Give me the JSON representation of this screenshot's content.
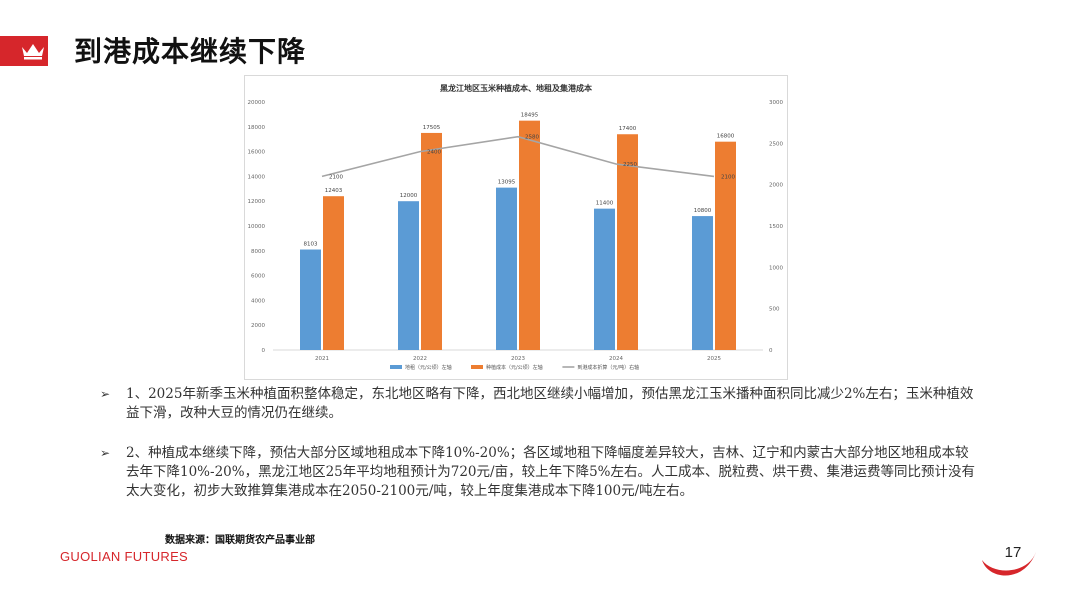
{
  "slide": {
    "title": "到港成本继续下降",
    "source": "数据来源：国联期货农产品事业部",
    "brand": "GUOLIAN FUTURES",
    "page_number": "17",
    "accent_color": "#d6262b"
  },
  "bullets": [
    {
      "marker": "➢",
      "text": "1、2025年新季玉米种植面积整体稳定，东北地区略有下降，西北地区继续小幅增加，预估黑龙江玉米播种面积同比减少2%左右；玉米种植效益下滑，改种大豆的情况仍在继续。"
    },
    {
      "marker": "➢",
      "text": "2、种植成本继续下降，预估大部分区域地租成本下降10%-20%；各区域地租下降幅度差异较大，吉林、辽宁和内蒙古大部分地区地租成本较去年下降10%-20%，黑龙江地区25年平均地租预计为720元/亩，较上年下降5%左右。人工成本、脱粒费、烘干费、集港运费等同比预计没有太大变化，初步大致推算集港成本在2050-2100元/吨，较上年度集港成本下降100元/吨左右。"
    }
  ],
  "chart_data": {
    "type": "bar",
    "title": "黑龙江地区玉米种植成本、地租及集港成本",
    "categories": [
      "2021",
      "2022",
      "2023",
      "2024",
      "2025"
    ],
    "left_axis": {
      "min": 0,
      "max": 20000,
      "step": 2000,
      "ticks": [
        "0",
        "2000",
        "4000",
        "6000",
        "8000",
        "10000",
        "12000",
        "14000",
        "16000",
        "18000",
        "20000"
      ]
    },
    "right_axis": {
      "min": 0,
      "max": 3000,
      "step": 500,
      "ticks": [
        "0",
        "500",
        "1000",
        "1500",
        "2000",
        "2500",
        "3000"
      ]
    },
    "series": [
      {
        "name": "地租（元/公顷）左轴",
        "kind": "bar",
        "axis": "left",
        "color": "#5b9bd5",
        "values": [
          8103,
          12000,
          13095,
          11400,
          10800
        ]
      },
      {
        "name": "种植成本（元/公顷）左轴",
        "kind": "bar",
        "axis": "left",
        "color": "#ed7d31",
        "values": [
          12403,
          17505,
          18495,
          17400,
          16800
        ]
      },
      {
        "name": "到港成本折算（元/吨）右轴",
        "kind": "line",
        "axis": "right",
        "color": "#a5a5a5",
        "values": [
          2100,
          2400,
          2580,
          2250,
          2100
        ]
      }
    ],
    "grid": false,
    "legend": "bottom"
  }
}
